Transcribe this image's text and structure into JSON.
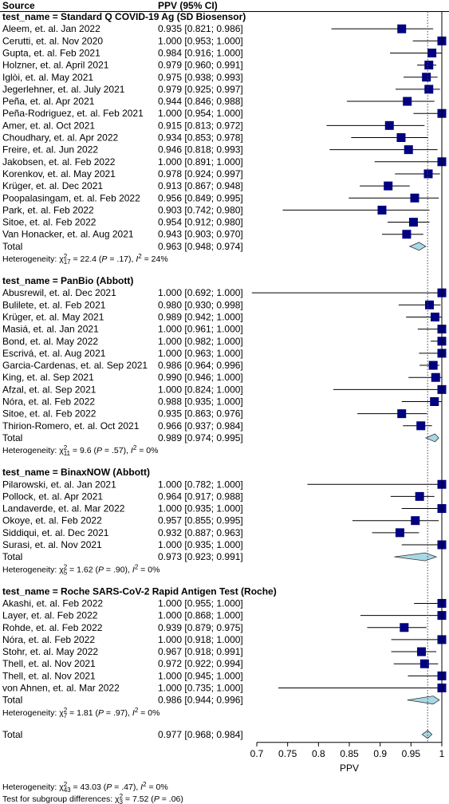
{
  "chart_data": {
    "type": "forest",
    "header": {
      "source": "Source",
      "estimate": "PPV (95% CI)"
    },
    "xlabel": "PPV",
    "xlim": [
      0.7,
      1
    ],
    "xticks": [
      0.7,
      0.75,
      0.8,
      0.85,
      0.9,
      0.95,
      1
    ],
    "marker_color": "#000080",
    "diamond_color": "#a8d8e6",
    "groups": [
      {
        "title": "test_name = Standard Q COVID-19 Ag (SD Biosensor)",
        "studies": [
          {
            "name": "Aleem, et. al. Jan 2022",
            "value": 0.935,
            "lower": 0.821,
            "upper": 0.986,
            "value_label": "0.935 [0.821; 0.986]"
          },
          {
            "name": "Cerutti, et. al. Nov 2020",
            "value": 1.0,
            "lower": 0.953,
            "upper": 1.0,
            "value_label": "1.000 [0.953; 1.000]"
          },
          {
            "name": "Gupta, et. al. Feb 2021",
            "value": 0.984,
            "lower": 0.916,
            "upper": 1.0,
            "value_label": "0.984 [0.916; 1.000]"
          },
          {
            "name": "Holzner, et. al. April 2021",
            "value": 0.979,
            "lower": 0.96,
            "upper": 0.991,
            "value_label": "0.979 [0.960; 0.991]"
          },
          {
            "name": "Iglòi, et. al. May 2021",
            "value": 0.975,
            "lower": 0.938,
            "upper": 0.993,
            "value_label": "0.975 [0.938; 0.993]"
          },
          {
            "name": "Jegerlehner, et. al. July 2021",
            "value": 0.979,
            "lower": 0.925,
            "upper": 0.997,
            "value_label": "0.979 [0.925; 0.997]"
          },
          {
            "name": "Peña, et. al. Apr 2021",
            "value": 0.944,
            "lower": 0.846,
            "upper": 0.988,
            "value_label": "0.944 [0.846; 0.988]"
          },
          {
            "name": "Peña-Rodriguez, et. al. Feb 2021",
            "value": 1.0,
            "lower": 0.954,
            "upper": 1.0,
            "value_label": "1.000 [0.954; 1.000]"
          },
          {
            "name": "Amer, et. al. Oct 2021",
            "value": 0.915,
            "lower": 0.813,
            "upper": 0.972,
            "value_label": "0.915 [0.813; 0.972]"
          },
          {
            "name": "Choudhary, et. al. Apr 2022",
            "value": 0.934,
            "lower": 0.853,
            "upper": 0.978,
            "value_label": "0.934 [0.853; 0.978]"
          },
          {
            "name": "Freire, et. al. Jun 2022",
            "value": 0.946,
            "lower": 0.818,
            "upper": 0.993,
            "value_label": "0.946 [0.818; 0.993]"
          },
          {
            "name": "Jakobsen, et. al. Feb 2022",
            "value": 1.0,
            "lower": 0.891,
            "upper": 1.0,
            "value_label": "1.000 [0.891; 1.000]"
          },
          {
            "name": "Korenkov, et. al. May 2021",
            "value": 0.978,
            "lower": 0.924,
            "upper": 0.997,
            "value_label": "0.978 [0.924; 0.997]"
          },
          {
            "name": "Krüger, et. al. Dec 2021",
            "value": 0.913,
            "lower": 0.867,
            "upper": 0.948,
            "value_label": "0.913 [0.867; 0.948]"
          },
          {
            "name": "Poopalasingam, et. al. Feb 2022",
            "value": 0.956,
            "lower": 0.849,
            "upper": 0.995,
            "value_label": "0.956 [0.849; 0.995]"
          },
          {
            "name": "Park, et. al. Feb 2022",
            "value": 0.903,
            "lower": 0.742,
            "upper": 0.98,
            "value_label": "0.903 [0.742; 0.980]"
          },
          {
            "name": "Sitoe, et. al. Feb 2022",
            "value": 0.954,
            "lower": 0.912,
            "upper": 0.98,
            "value_label": "0.954 [0.912; 0.980]"
          },
          {
            "name": "Van Honacker, et. al. Aug 2021",
            "value": 0.943,
            "lower": 0.903,
            "upper": 0.97,
            "value_label": "0.943 [0.903; 0.970]"
          }
        ],
        "total": {
          "name": "Total",
          "value": 0.963,
          "lower": 0.948,
          "upper": 0.974,
          "value_label": "0.963 [0.948; 0.974]"
        },
        "heterogeneity": {
          "prefix": "Heterogeneity: χ",
          "sup": "2",
          "sub": "17",
          "stat": " = 22.4 (",
          "p": "P",
          "pval": " = .17), ",
          "i": "I",
          "isup": "2",
          "ival": " = 24%"
        }
      },
      {
        "title": "test_name = PanBio (Abbott)",
        "studies": [
          {
            "name": "Abusrewil, et. al. Dec 2021",
            "value": 1.0,
            "lower": 0.692,
            "upper": 1.0,
            "value_label": "1.000 [0.692; 1.000]"
          },
          {
            "name": "Bulilete, et. al. Feb 2021",
            "value": 0.98,
            "lower": 0.93,
            "upper": 0.998,
            "value_label": "0.980 [0.930; 0.998]"
          },
          {
            "name": "Krüger, et. al. May 2021",
            "value": 0.989,
            "lower": 0.942,
            "upper": 1.0,
            "value_label": "0.989 [0.942; 1.000]"
          },
          {
            "name": "Masiá, et. al. Jan 2021",
            "value": 1.0,
            "lower": 0.961,
            "upper": 1.0,
            "value_label": "1.000 [0.961; 1.000]"
          },
          {
            "name": "Bond, et. al. May 2022",
            "value": 1.0,
            "lower": 0.982,
            "upper": 1.0,
            "value_label": "1.000 [0.982; 1.000]"
          },
          {
            "name": "Escrivá, et. al. Aug 2021",
            "value": 1.0,
            "lower": 0.963,
            "upper": 1.0,
            "value_label": "1.000 [0.963; 1.000]"
          },
          {
            "name": "Garcia-Cardenas, et. al. Sep 2021",
            "value": 0.986,
            "lower": 0.964,
            "upper": 0.996,
            "value_label": "0.986 [0.964; 0.996]"
          },
          {
            "name": "King, et. al. Sep 2021",
            "value": 0.99,
            "lower": 0.946,
            "upper": 1.0,
            "value_label": "0.990 [0.946; 1.000]"
          },
          {
            "name": "Afzal, et. al. Sep 2021",
            "value": 1.0,
            "lower": 0.824,
            "upper": 1.0,
            "value_label": "1.000 [0.824; 1.000]"
          },
          {
            "name": "Nóra, et. al. Feb 2022",
            "value": 0.988,
            "lower": 0.935,
            "upper": 1.0,
            "value_label": "0.988 [0.935; 1.000]"
          },
          {
            "name": "Sitoe, et. al. Feb 2022",
            "value": 0.935,
            "lower": 0.863,
            "upper": 0.976,
            "value_label": "0.935 [0.863; 0.976]"
          },
          {
            "name": "Thirion-Romero, et. al. Oct 2021",
            "value": 0.966,
            "lower": 0.937,
            "upper": 0.984,
            "value_label": "0.966 [0.937; 0.984]"
          }
        ],
        "total": {
          "name": "Total",
          "value": 0.989,
          "lower": 0.974,
          "upper": 0.995,
          "value_label": "0.989 [0.974; 0.995]"
        },
        "heterogeneity": {
          "prefix": "Heterogeneity: χ",
          "sup": "2",
          "sub": "11",
          "stat": " = 9.6 (",
          "p": "P",
          "pval": " = .57), ",
          "i": "I",
          "isup": "2",
          "ival": " = 0%"
        }
      },
      {
        "title": "test_name = BinaxNOW (Abbott)",
        "studies": [
          {
            "name": "Pilarowski, et. al. Jan 2021",
            "value": 1.0,
            "lower": 0.782,
            "upper": 1.0,
            "value_label": "1.000 [0.782; 1.000]"
          },
          {
            "name": "Pollock, et. al. Apr 2021",
            "value": 0.964,
            "lower": 0.917,
            "upper": 0.988,
            "value_label": "0.964 [0.917; 0.988]"
          },
          {
            "name": "Landaverde, et. al. Mar 2022",
            "value": 1.0,
            "lower": 0.935,
            "upper": 1.0,
            "value_label": "1.000 [0.935; 1.000]"
          },
          {
            "name": "Okoye, et. al. Feb 2022",
            "value": 0.957,
            "lower": 0.855,
            "upper": 0.995,
            "value_label": "0.957 [0.855; 0.995]"
          },
          {
            "name": "Siddiqui, et. al. Dec 2021",
            "value": 0.932,
            "lower": 0.887,
            "upper": 0.963,
            "value_label": "0.932 [0.887; 0.963]"
          },
          {
            "name": "Surasi, et. al. Nov 2021",
            "value": 1.0,
            "lower": 0.935,
            "upper": 1.0,
            "value_label": "1.000 [0.935; 1.000]"
          }
        ],
        "total": {
          "name": "Total",
          "value": 0.973,
          "lower": 0.923,
          "upper": 0.991,
          "value_label": "0.973 [0.923; 0.991]"
        },
        "heterogeneity": {
          "prefix": "Heterogeneity: χ",
          "sup": "2",
          "sub": "5",
          "stat": " = 1.62 (",
          "p": "P",
          "pval": " = .90), ",
          "i": "I",
          "isup": "2",
          "ival": " = 0%"
        }
      },
      {
        "title": "test_name = Roche SARS-CoV-2 Rapid Antigen Test (Roche)",
        "studies": [
          {
            "name": "Akashi, et. al. Feb 2022",
            "value": 1.0,
            "lower": 0.955,
            "upper": 1.0,
            "value_label": "1.000 [0.955; 1.000]"
          },
          {
            "name": "Layer, et. al. Feb 2022",
            "value": 1.0,
            "lower": 0.868,
            "upper": 1.0,
            "value_label": "1.000 [0.868; 1.000]"
          },
          {
            "name": "Rohde, et. al. Feb 2022",
            "value": 0.939,
            "lower": 0.879,
            "upper": 0.975,
            "value_label": "0.939 [0.879; 0.975]"
          },
          {
            "name": "Nóra, et. al. Feb 2022",
            "value": 1.0,
            "lower": 0.918,
            "upper": 1.0,
            "value_label": "1.000 [0.918; 1.000]"
          },
          {
            "name": "Stohr, et. al. May 2022",
            "value": 0.967,
            "lower": 0.918,
            "upper": 0.991,
            "value_label": "0.967 [0.918; 0.991]"
          },
          {
            "name": "Thell, et. al. Nov 2021",
            "value": 0.972,
            "lower": 0.922,
            "upper": 0.994,
            "value_label": "0.972 [0.922; 0.994]"
          },
          {
            "name": "Thell, et. al. Nov 2021",
            "value": 1.0,
            "lower": 0.945,
            "upper": 1.0,
            "value_label": "1.000 [0.945; 1.000]"
          },
          {
            "name": "von Ahnen, et. al. Mar 2022",
            "value": 1.0,
            "lower": 0.735,
            "upper": 1.0,
            "value_label": "1.000 [0.735; 1.000]"
          }
        ],
        "total": {
          "name": "Total",
          "value": 0.986,
          "lower": 0.944,
          "upper": 0.996,
          "value_label": "0.986 [0.944; 0.996]"
        },
        "heterogeneity": {
          "prefix": "Heterogeneity: χ",
          "sup": "2",
          "sub": "7",
          "stat": " = 1.81 (",
          "p": "P",
          "pval": " = .97), ",
          "i": "I",
          "isup": "2",
          "ival": " = 0%"
        }
      }
    ],
    "overall": {
      "name": "Total",
      "value": 0.977,
      "lower": 0.968,
      "upper": 0.984,
      "value_label": "0.977 [0.968; 0.984]"
    },
    "footnotes": [
      {
        "prefix": "Heterogeneity: χ",
        "sup": "2",
        "sub": "43",
        "stat": " = 43.03 (",
        "p": "P",
        "pval": " = .47), ",
        "i": "I",
        "isup": "2",
        "ival": " = 0%"
      },
      {
        "prefix": "Test for subgroup differences: χ",
        "sup": "2",
        "sub": "3",
        "stat": " = 7.52 (",
        "p": "P",
        "pval": " = .06)"
      }
    ]
  }
}
